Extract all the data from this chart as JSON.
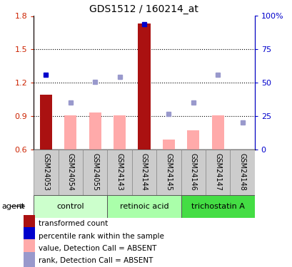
{
  "title": "GDS1512 / 160214_at",
  "samples": [
    "GSM24053",
    "GSM24054",
    "GSM24055",
    "GSM24143",
    "GSM24144",
    "GSM24145",
    "GSM24146",
    "GSM24147",
    "GSM24148"
  ],
  "bar_values": [
    1.09,
    null,
    null,
    null,
    1.73,
    null,
    null,
    null,
    null
  ],
  "bar_absent_values": [
    null,
    0.905,
    0.935,
    0.905,
    null,
    0.69,
    0.77,
    0.905,
    null
  ],
  "blue_dot_present": [
    1.275,
    null,
    null,
    null,
    1.725,
    null,
    null,
    null,
    null
  ],
  "blue_dot_absent": [
    null,
    1.025,
    1.205,
    1.255,
    null,
    0.92,
    1.02,
    1.27,
    0.845
  ],
  "ylim": [
    0.6,
    1.8
  ],
  "yticks_left": [
    0.6,
    0.9,
    1.2,
    1.5,
    1.8
  ],
  "yticks_right": [
    0,
    25,
    50,
    75,
    100
  ],
  "bar_color_present": "#aa1111",
  "bar_color_absent": "#ffaaaa",
  "dot_color_present": "#0000cc",
  "dot_color_absent": "#9999cc",
  "legend_items": [
    {
      "color": "#aa1111",
      "label": "transformed count"
    },
    {
      "color": "#0000cc",
      "label": "percentile rank within the sample"
    },
    {
      "color": "#ffaaaa",
      "label": "value, Detection Call = ABSENT"
    },
    {
      "color": "#9999cc",
      "label": "rank, Detection Call = ABSENT"
    }
  ],
  "ylabel_left_color": "#cc2200",
  "ylabel_right_color": "#0000cc",
  "group_defs": [
    {
      "start": 0,
      "end": 2,
      "label": "control",
      "color": "#ccffcc"
    },
    {
      "start": 3,
      "end": 5,
      "label": "retinoic acid",
      "color": "#aaffaa"
    },
    {
      "start": 6,
      "end": 8,
      "label": "trichostatin A",
      "color": "#44dd44"
    }
  ],
  "agent_label": "agent"
}
